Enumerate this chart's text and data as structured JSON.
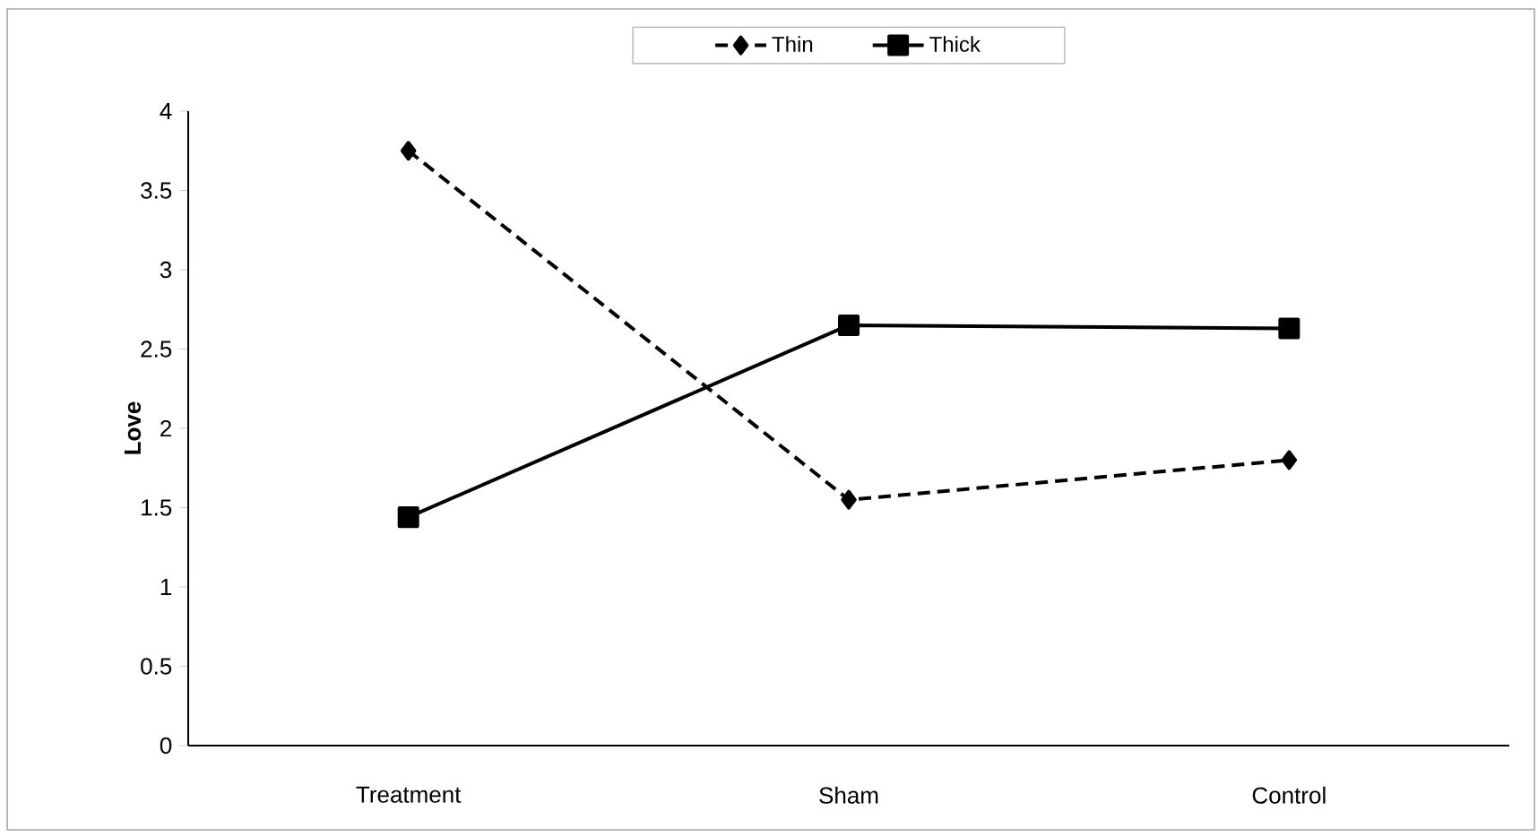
{
  "chart_data": {
    "type": "line",
    "ylabel": "Love",
    "categories": [
      "Treatment",
      "Sham",
      "Control"
    ],
    "series": [
      {
        "name": "Thin",
        "color": "#000000",
        "marker": "diamond",
        "line_style": "dashed",
        "values": [
          3.75,
          1.55,
          1.8
        ]
      },
      {
        "name": "Thick",
        "color": "#000000",
        "marker": "square",
        "line_style": "solid",
        "values": [
          1.44,
          2.65,
          2.63
        ]
      }
    ],
    "ylim": [
      0,
      4
    ],
    "yticks": [
      0,
      0.5,
      1,
      1.5,
      2,
      2.5,
      3,
      3.5,
      4
    ],
    "legend": "top"
  }
}
